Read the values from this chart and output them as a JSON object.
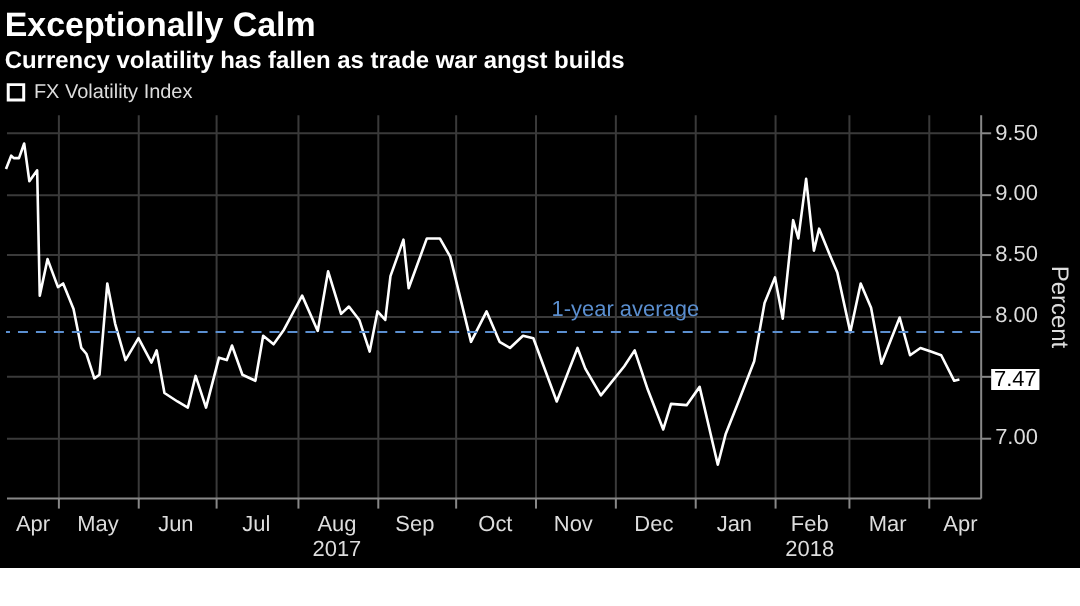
{
  "chart_data": {
    "type": "line",
    "title": "Exceptionally Calm",
    "subtitle": "Currency volatility has fallen as trade war angst builds",
    "ylabel": "Percent",
    "x": [
      "2017-04-11",
      "2017-04-13",
      "2017-04-14",
      "2017-04-16",
      "2017-04-18",
      "2017-04-20",
      "2017-04-23",
      "2017-04-24",
      "2017-04-27",
      "2017-05-01",
      "2017-05-03",
      "2017-05-07",
      "2017-05-10",
      "2017-05-12",
      "2017-05-15",
      "2017-05-17",
      "2017-05-20",
      "2017-05-23",
      "2017-05-27",
      "2017-06-01",
      "2017-06-06",
      "2017-06-08",
      "2017-06-11",
      "2017-06-16",
      "2017-06-20",
      "2017-06-23",
      "2017-06-27",
      "2017-07-02",
      "2017-07-05",
      "2017-07-07",
      "2017-07-11",
      "2017-07-16",
      "2017-07-19",
      "2017-07-23",
      "2017-07-27",
      "2017-08-03",
      "2017-08-09",
      "2017-08-13",
      "2017-08-18",
      "2017-08-21",
      "2017-08-25",
      "2017-08-29",
      "2017-09-01",
      "2017-09-04",
      "2017-09-06",
      "2017-09-11",
      "2017-09-13",
      "2017-09-20",
      "2017-09-25",
      "2017-09-29",
      "2017-10-07",
      "2017-10-13",
      "2017-10-18",
      "2017-10-22",
      "2017-10-27",
      "2017-10-31",
      "2017-11-09",
      "2017-11-17",
      "2017-11-20",
      "2017-11-26",
      "2017-12-05",
      "2017-12-09",
      "2017-12-14",
      "2017-12-20",
      "2017-12-23",
      "2017-12-29",
      "2018-01-03",
      "2018-01-10",
      "2018-01-13",
      "2018-01-18",
      "2018-01-24",
      "2018-01-28",
      "2018-02-01",
      "2018-02-04",
      "2018-02-08",
      "2018-02-10",
      "2018-02-13",
      "2018-02-16",
      "2018-02-18",
      "2018-02-22",
      "2018-02-25",
      "2018-03-02",
      "2018-03-06",
      "2018-03-10",
      "2018-03-14",
      "2018-03-21",
      "2018-03-25",
      "2018-03-29",
      "2018-04-02",
      "2018-04-06",
      "2018-04-11",
      "2018-04-13"
    ],
    "series": [
      {
        "name": "FX Volatility Index",
        "color": "#ffffff",
        "values": [
          9.2,
          9.31,
          9.29,
          9.29,
          9.41,
          9.1,
          9.19,
          8.16,
          8.46,
          8.23,
          8.26,
          8.05,
          7.73,
          7.68,
          7.48,
          7.51,
          8.26,
          7.93,
          7.63,
          7.81,
          7.61,
          7.71,
          7.36,
          7.29,
          7.24,
          7.5,
          7.24,
          7.65,
          7.63,
          7.75,
          7.51,
          7.46,
          7.83,
          7.76,
          7.88,
          8.16,
          7.87,
          8.36,
          8.01,
          8.07,
          7.96,
          7.7,
          8.03,
          7.96,
          8.32,
          8.62,
          8.22,
          8.63,
          8.63,
          8.48,
          7.78,
          8.03,
          7.78,
          7.73,
          7.83,
          7.81,
          7.29,
          7.73,
          7.56,
          7.34,
          7.58,
          7.71,
          7.39,
          7.06,
          7.27,
          7.26,
          7.41,
          6.77,
          7.02,
          7.29,
          7.62,
          8.1,
          8.31,
          7.97,
          8.78,
          8.63,
          9.12,
          8.53,
          8.71,
          8.5,
          8.35,
          7.86,
          8.26,
          8.06,
          7.6,
          7.98,
          7.67,
          7.73,
          7.7,
          7.67,
          7.46,
          7.47
        ]
      }
    ],
    "xlim": [
      "2017-04-11",
      "2018-04-21"
    ],
    "xticks": [
      {
        "value": "2017-04-21",
        "label": "Apr"
      },
      {
        "value": "2017-05-01",
        "label": null
      },
      {
        "value": "2017-05-16",
        "label": "May"
      },
      {
        "value": "2017-06-01",
        "label": null
      },
      {
        "value": "2017-06-15",
        "label": "Jun"
      },
      {
        "value": "2017-07-01",
        "label": null
      },
      {
        "value": "2017-07-16",
        "label": "Jul"
      },
      {
        "value": "2017-08-01",
        "label": null
      },
      {
        "value": "2017-08-16",
        "label": "Aug\n2017"
      },
      {
        "value": "2017-09-01",
        "label": null
      },
      {
        "value": "2017-09-15",
        "label": "Sep"
      },
      {
        "value": "2017-10-01",
        "label": null
      },
      {
        "value": "2017-10-16",
        "label": "Oct"
      },
      {
        "value": "2017-11-01",
        "label": null
      },
      {
        "value": "2017-11-15",
        "label": "Nov"
      },
      {
        "value": "2017-12-01",
        "label": null
      },
      {
        "value": "2017-12-16",
        "label": "Dec"
      },
      {
        "value": "2018-01-01",
        "label": null
      },
      {
        "value": "2018-01-16",
        "label": "Jan"
      },
      {
        "value": "2018-02-01",
        "label": null
      },
      {
        "value": "2018-02-14",
        "label": "Feb\n2018"
      },
      {
        "value": "2018-03-01",
        "label": null
      },
      {
        "value": "2018-03-16",
        "label": "Mar"
      },
      {
        "value": "2018-04-01",
        "label": null
      },
      {
        "value": "2018-04-13",
        "label": "Apr"
      }
    ],
    "ylim": [
      6.5,
      9.65
    ],
    "yticks": [
      {
        "value": 7.0,
        "label": "7.00"
      },
      {
        "value": 7.5,
        "label": null
      },
      {
        "value": 8.0,
        "label": "8.00"
      },
      {
        "value": 8.5,
        "label": "8.50"
      },
      {
        "value": 9.0,
        "label": "9.00"
      },
      {
        "value": 9.5,
        "label": "9.50"
      }
    ],
    "ref_lines": [
      {
        "axis": "y",
        "value": 7.86,
        "label": "1-year average",
        "color": "#5b8fd0",
        "line_style": "dashed"
      }
    ],
    "annotations": [
      {
        "text": "7.47",
        "x": "2018-04-13",
        "y": 7.47
      }
    ],
    "grid": true,
    "legend": "top left",
    "line_style": "solid"
  }
}
